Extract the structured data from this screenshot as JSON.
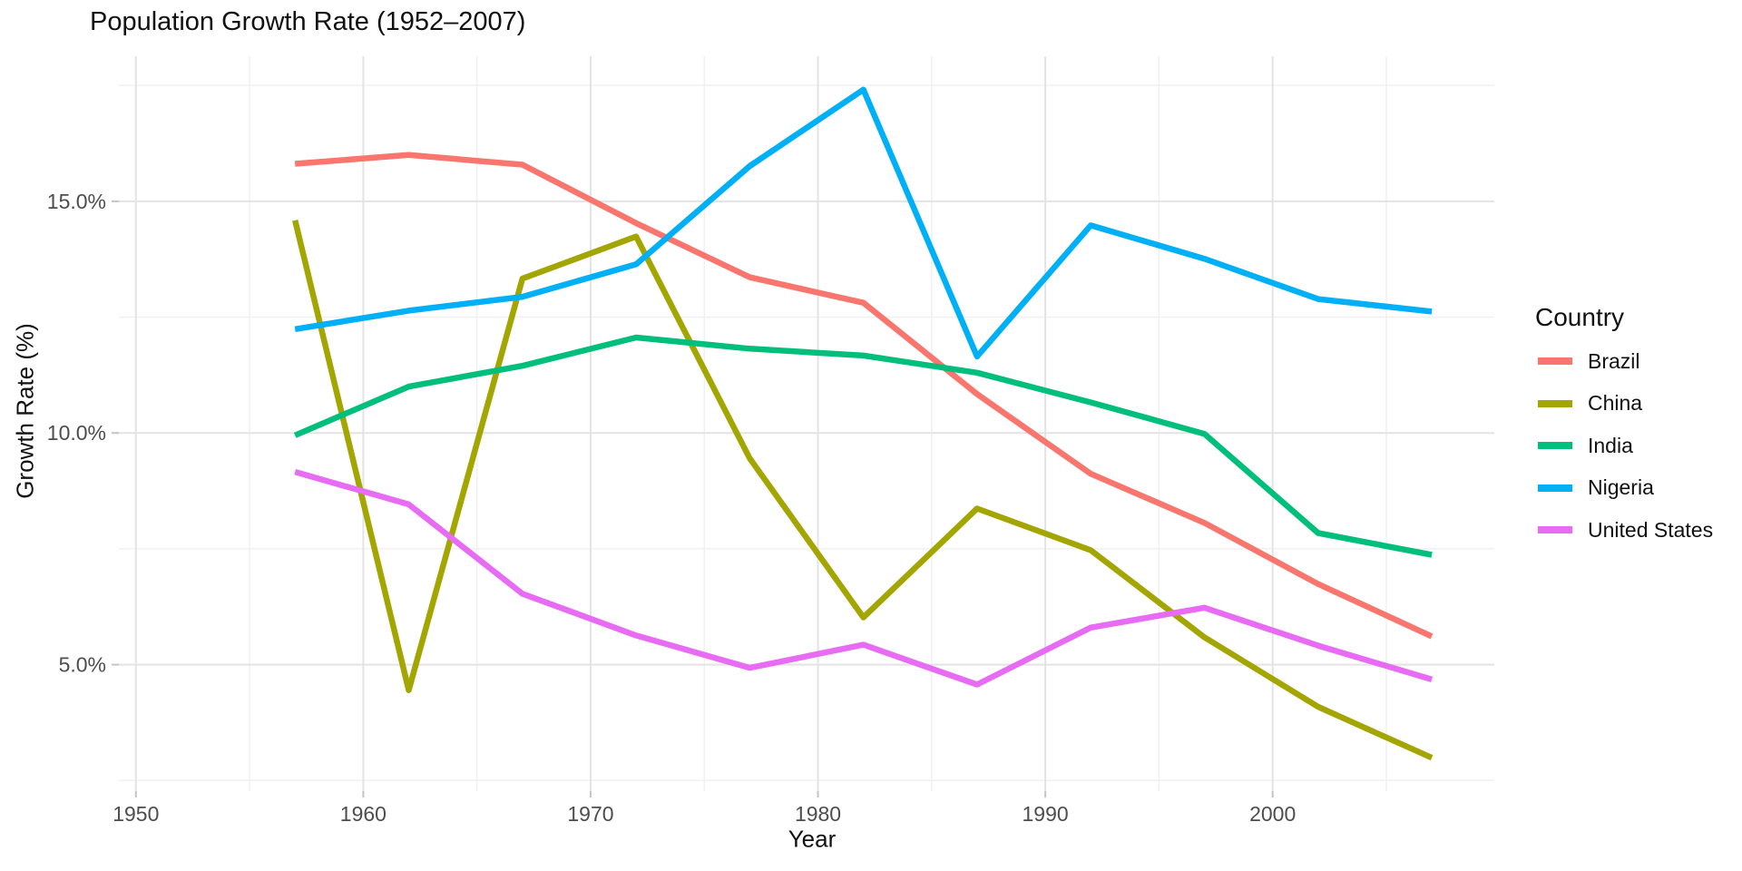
{
  "chart_data": {
    "type": "line",
    "title": "Population Growth Rate (1952–2007)",
    "xlabel": "Year",
    "ylabel": "Growth Rate (%)",
    "legend_title": "Country",
    "legend_position": "right",
    "grid": true,
    "x": [
      1957,
      1962,
      1967,
      1972,
      1977,
      1982,
      1987,
      1992,
      1997,
      2002,
      2007
    ],
    "series": [
      {
        "name": "Brazil",
        "color": "#F8766D",
        "values": [
          15.81,
          16.0,
          15.79,
          14.53,
          13.36,
          12.81,
          10.84,
          9.12,
          8.06,
          6.74,
          5.61
        ]
      },
      {
        "name": "China",
        "color": "#A3A500",
        "values": [
          14.59,
          4.45,
          13.33,
          14.24,
          9.45,
          6.02,
          8.37,
          7.47,
          5.59,
          4.09,
          2.99
        ]
      },
      {
        "name": "India",
        "color": "#00BF7D",
        "values": [
          9.95,
          11.0,
          11.45,
          12.06,
          11.82,
          11.67,
          11.3,
          10.66,
          9.98,
          7.84,
          7.37
        ]
      },
      {
        "name": "Nigeria",
        "color": "#00B0F6",
        "values": [
          12.24,
          12.64,
          12.94,
          13.64,
          15.76,
          17.41,
          11.65,
          14.48,
          13.76,
          12.89,
          12.62
        ]
      },
      {
        "name": "United States",
        "color": "#E76BF3",
        "values": [
          9.16,
          8.46,
          6.53,
          5.63,
          4.93,
          5.43,
          4.57,
          5.8,
          6.23,
          5.41,
          4.68
        ]
      }
    ],
    "xlim": [
      1949.25,
      2009.75
    ],
    "ylim": [
      2.27,
      18.13
    ],
    "x_major_ticks": [
      1950,
      1960,
      1970,
      1980,
      1990,
      2000
    ],
    "x_minor_ticks": [
      1955,
      1965,
      1975,
      1985,
      1995,
      2005
    ],
    "x_tick_labels": [
      "1950",
      "1960",
      "1970",
      "1980",
      "1990",
      "2000"
    ],
    "y_major_ticks": [
      5,
      10,
      15
    ],
    "y_minor_ticks": [
      2.5,
      7.5,
      12.5,
      17.5
    ],
    "y_tick_labels": [
      "5.0%",
      "10.0%",
      "15.0%"
    ]
  },
  "style": {
    "background": "#ffffff",
    "major_grid_color": "#e3e3e3",
    "minor_grid_color": "#f0f0f0",
    "tick_mark_color": "#c4c4c4",
    "tick_label_color": "#4d4d4d",
    "line_width": 6.5
  }
}
